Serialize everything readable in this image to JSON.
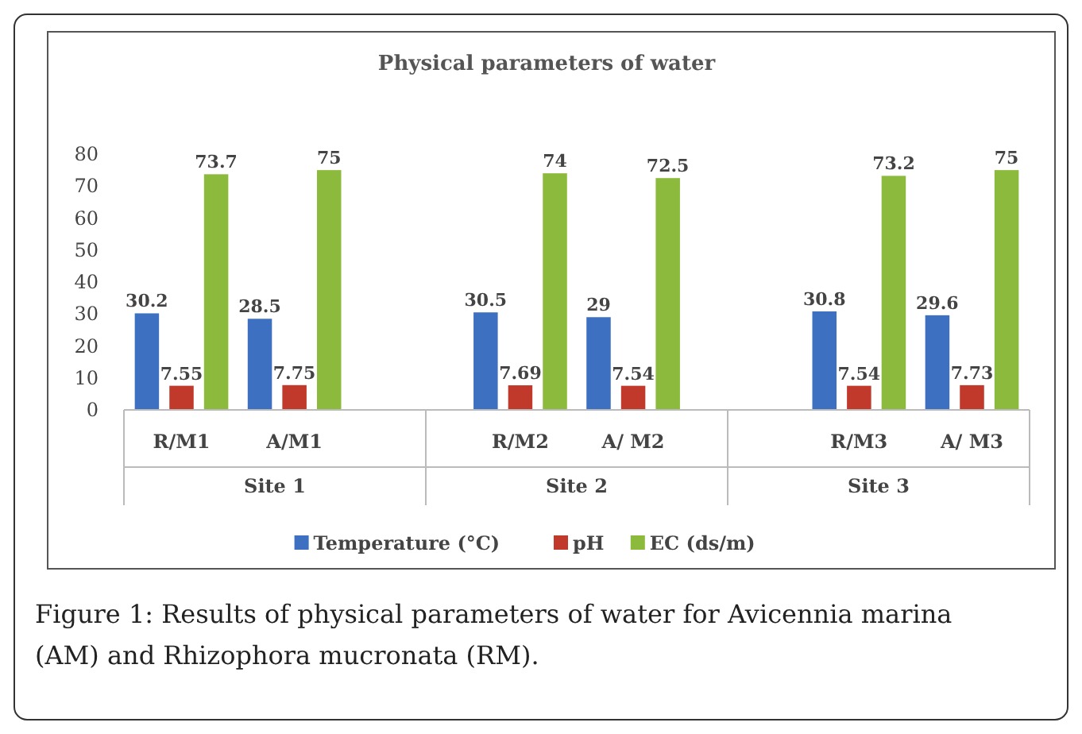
{
  "chart_data": {
    "type": "bar",
    "title": "Physical parameters of water",
    "categories": [
      "R/M1",
      "A/M1",
      null,
      "R/M2",
      "A/ M2",
      null,
      "R/M3",
      "A/ M3"
    ],
    "series": [
      {
        "name": "Temperature (°C)",
        "color": "#3d70c0",
        "values": [
          30.2,
          28.5,
          null,
          30.5,
          29,
          null,
          30.8,
          29.6
        ]
      },
      {
        "name": "pH",
        "color": "#c0392b",
        "values": [
          7.55,
          7.75,
          null,
          7.69,
          7.54,
          null,
          7.54,
          7.73
        ]
      },
      {
        "name": "EC (ds/m)",
        "color": "#8cba3c",
        "values": [
          73.7,
          75,
          null,
          74,
          72.5,
          null,
          73.2,
          75
        ]
      }
    ],
    "ylim": [
      0,
      80
    ],
    "yticks": [
      0,
      10,
      20,
      30,
      40,
      50,
      60,
      70,
      80
    ],
    "grid": false,
    "legend": "bottom",
    "data_labels": true,
    "annotations": [
      "Site 1",
      "Site 2",
      "Site 3",
      "Figure 1: Results of physical parameters of water for Avicennia marina (AM) and Rhizophora mucronata (RM)."
    ]
  }
}
